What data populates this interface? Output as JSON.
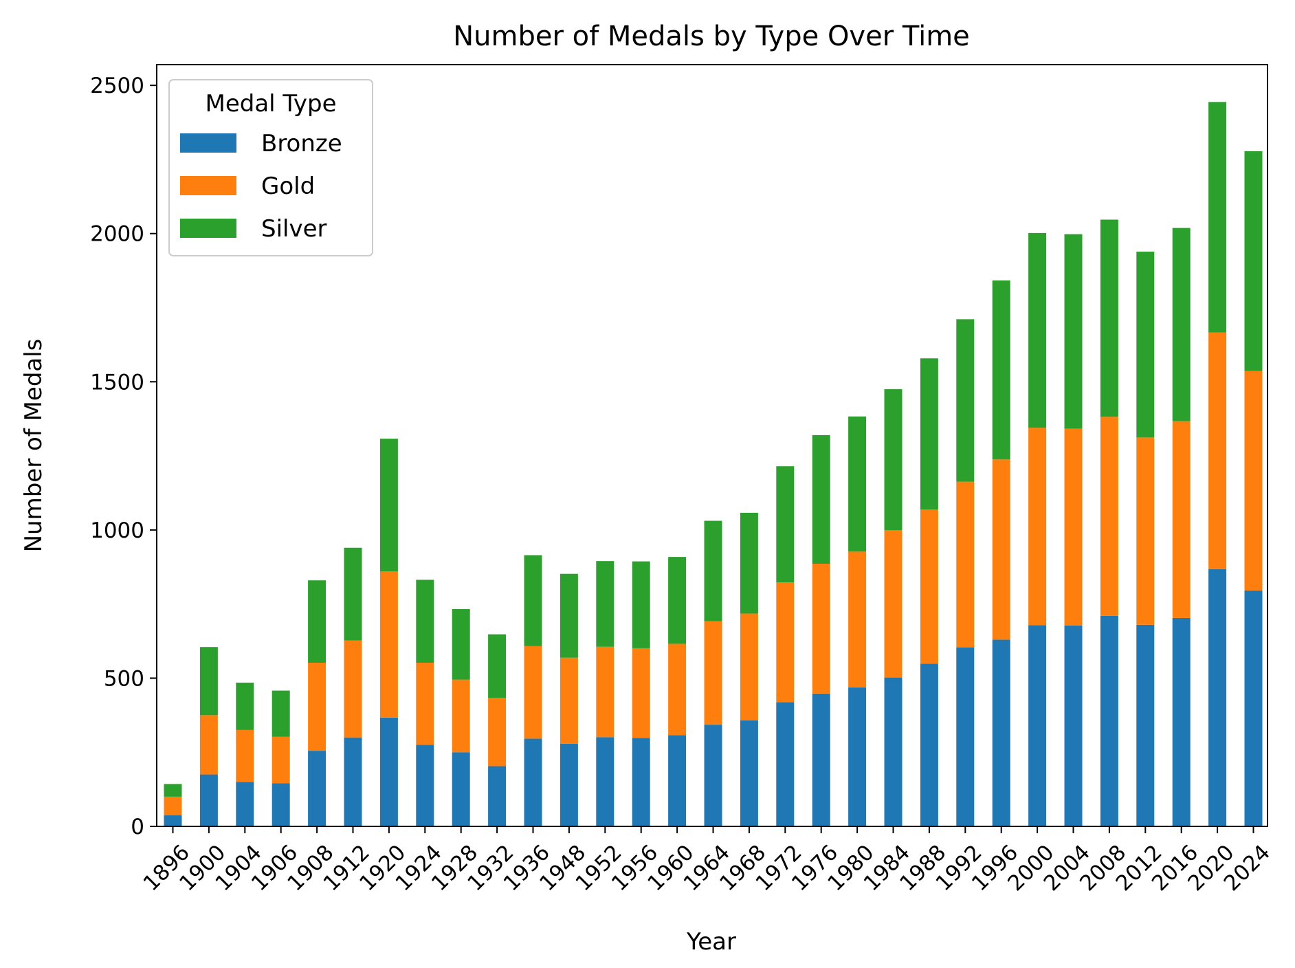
{
  "chart_data": {
    "type": "bar",
    "stacked": true,
    "title": "Number of Medals by Type Over Time",
    "xlabel": "Year",
    "ylabel": "Number of Medals",
    "ylim": [
      0,
      2570
    ],
    "yticks": [
      0,
      500,
      1000,
      1500,
      2000,
      2500
    ],
    "grid": false,
    "legend": {
      "title": "Medal Type",
      "position": "top-left"
    },
    "categories": [
      "1896",
      "1900",
      "1904",
      "1906",
      "1908",
      "1912",
      "1920",
      "1924",
      "1928",
      "1932",
      "1936",
      "1948",
      "1952",
      "1956",
      "1960",
      "1964",
      "1968",
      "1972",
      "1976",
      "1980",
      "1984",
      "1988",
      "1992",
      "1996",
      "2000",
      "2004",
      "2008",
      "2012",
      "2016",
      "2020",
      "2024"
    ],
    "series": [
      {
        "name": "Bronze",
        "color": "#1f77b4",
        "values": [
          38,
          175,
          150,
          145,
          255,
          300,
          367,
          275,
          250,
          203,
          296,
          279,
          301,
          298,
          308,
          343,
          358,
          419,
          448,
          469,
          502,
          549,
          604,
          630,
          679,
          678,
          710,
          680,
          703,
          868,
          796
        ]
      },
      {
        "name": "Gold",
        "color": "#ff7f0e",
        "values": [
          62,
          200,
          175,
          157,
          297,
          327,
          493,
          277,
          245,
          230,
          312,
          290,
          305,
          303,
          308,
          349,
          360,
          404,
          438,
          458,
          497,
          520,
          559,
          608,
          666,
          664,
          672,
          632,
          664,
          798,
          740
        ]
      },
      {
        "name": "Silver",
        "color": "#2ca02c",
        "values": [
          43,
          230,
          160,
          156,
          278,
          313,
          448,
          280,
          238,
          215,
          307,
          283,
          289,
          293,
          293,
          339,
          340,
          392,
          434,
          456,
          476,
          510,
          548,
          604,
          657,
          656,
          665,
          627,
          652,
          778,
          742
        ]
      }
    ]
  }
}
